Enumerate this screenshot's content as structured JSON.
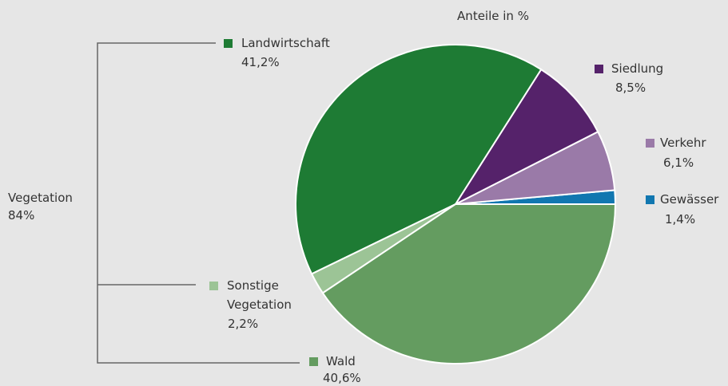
{
  "chart_data": {
    "type": "pie",
    "title": "Anteile in %",
    "categories": [
      "Gewässer",
      "Verkehr",
      "Siedlung",
      "Landwirtschaft",
      "Sonstige Vegetation",
      "Wald"
    ],
    "values": [
      1.4,
      6.1,
      8.5,
      41.2,
      2.2,
      40.6
    ],
    "value_labels": [
      "1,4%",
      "6,1%",
      "8,5%",
      "41,2%",
      "2,2%",
      "40,6%"
    ],
    "colors": [
      "#1177b0",
      "#9a7aa8",
      "#55226a",
      "#1e7b34",
      "#9cc496",
      "#649c60"
    ],
    "annotation": {
      "label": "Vegetation",
      "value": 84,
      "value_label": "84%"
    }
  }
}
